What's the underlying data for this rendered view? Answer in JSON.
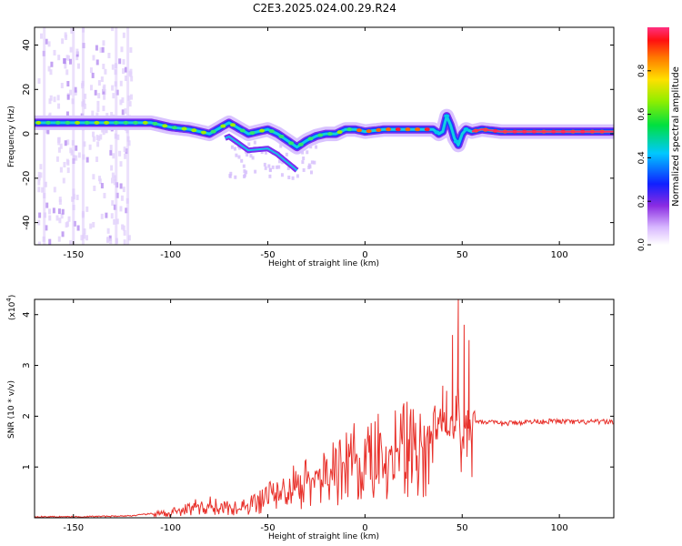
{
  "title": "C2E3.2025.024.00.29.R24",
  "chart_data": [
    {
      "type": "heatmap",
      "name": "spectrogram",
      "xlabel": "Height of straight line (km)",
      "ylabel": "Frequency (Hz)",
      "xlim": [
        -170,
        128
      ],
      "ylim": [
        -50,
        48
      ],
      "xticks": [
        -150,
        -100,
        -50,
        0,
        50,
        100
      ],
      "yticks": [
        -40,
        -20,
        0,
        20,
        40
      ],
      "ridge": {
        "x": [
          -170,
          -150,
          -130,
          -110,
          -100,
          -90,
          -80,
          -70,
          -60,
          -50,
          -45,
          -40,
          -35,
          -30,
          -25,
          -20,
          -15,
          -10,
          -5,
          0,
          10,
          20,
          30,
          35,
          38,
          40,
          42,
          44,
          46,
          48,
          50,
          52,
          55,
          60,
          70,
          80,
          100,
          128
        ],
        "y": [
          5,
          5,
          5,
          5,
          3,
          2,
          0,
          5,
          0,
          2,
          0,
          -3,
          -6,
          -3,
          -1,
          0,
          0,
          2,
          2,
          1,
          2,
          2,
          2,
          2,
          0,
          1,
          8,
          4,
          -2,
          -5,
          0,
          2,
          1,
          2,
          1,
          1,
          1,
          1
        ]
      },
      "colorbar": {
        "label": "Normalized spectral amplitude",
        "range": [
          0,
          1
        ],
        "ticks": [
          "0.0",
          "0.2",
          "0.4",
          "0.6",
          "0.8"
        ]
      }
    },
    {
      "type": "line",
      "name": "snr",
      "xlabel": "Height of straight line (km)",
      "ylabel": "SNR (10 * v/v)",
      "exponent_label": "(x10",
      "exponent_power": "4",
      "xlim": [
        -170,
        128
      ],
      "ylim": [
        0,
        4.3
      ],
      "xticks": [
        -150,
        -100,
        -50,
        0,
        50,
        100
      ],
      "yticks": [
        1,
        2,
        3,
        4
      ],
      "color": "#e8302a",
      "envelope": {
        "x": [
          -170,
          -150,
          -130,
          -120,
          -110,
          -100,
          -95,
          -90,
          -85,
          -80,
          -75,
          -70,
          -65,
          -60,
          -55,
          -50,
          -45,
          -40,
          -35,
          -30,
          -25,
          -20,
          -15,
          -10,
          -5,
          0,
          5,
          10,
          15,
          20,
          25,
          30,
          35,
          38,
          40,
          42,
          44,
          46,
          48,
          50,
          52,
          54,
          56,
          60,
          70,
          80,
          90,
          100,
          110,
          120,
          128
        ],
        "y": [
          0.02,
          0.02,
          0.03,
          0.04,
          0.08,
          0.12,
          0.18,
          0.22,
          0.28,
          0.3,
          0.26,
          0.22,
          0.24,
          0.3,
          0.38,
          0.48,
          0.58,
          0.7,
          0.78,
          0.85,
          0.92,
          1.0,
          1.1,
          1.2,
          1.3,
          1.4,
          1.45,
          1.5,
          1.55,
          1.6,
          1.65,
          1.75,
          1.85,
          1.9,
          1.85,
          2.0,
          1.7,
          1.9,
          2.3,
          1.2,
          2.1,
          1.7,
          1.9,
          1.9,
          1.85,
          1.88,
          1.9,
          1.9,
          1.88,
          1.89,
          1.89
        ]
      },
      "spikes": [
        {
          "x": 40,
          "y": 2.6
        },
        {
          "x": 42,
          "y": 2.5
        },
        {
          "x": 45,
          "y": 3.6
        },
        {
          "x": 46.5,
          "y": 1.7
        },
        {
          "x": 48,
          "y": 4.3
        },
        {
          "x": 49.5,
          "y": 0.9
        },
        {
          "x": 51,
          "y": 3.8
        },
        {
          "x": 52.5,
          "y": 1.2
        },
        {
          "x": 53.5,
          "y": 3.5
        },
        {
          "x": 55,
          "y": 0.8
        }
      ]
    }
  ]
}
